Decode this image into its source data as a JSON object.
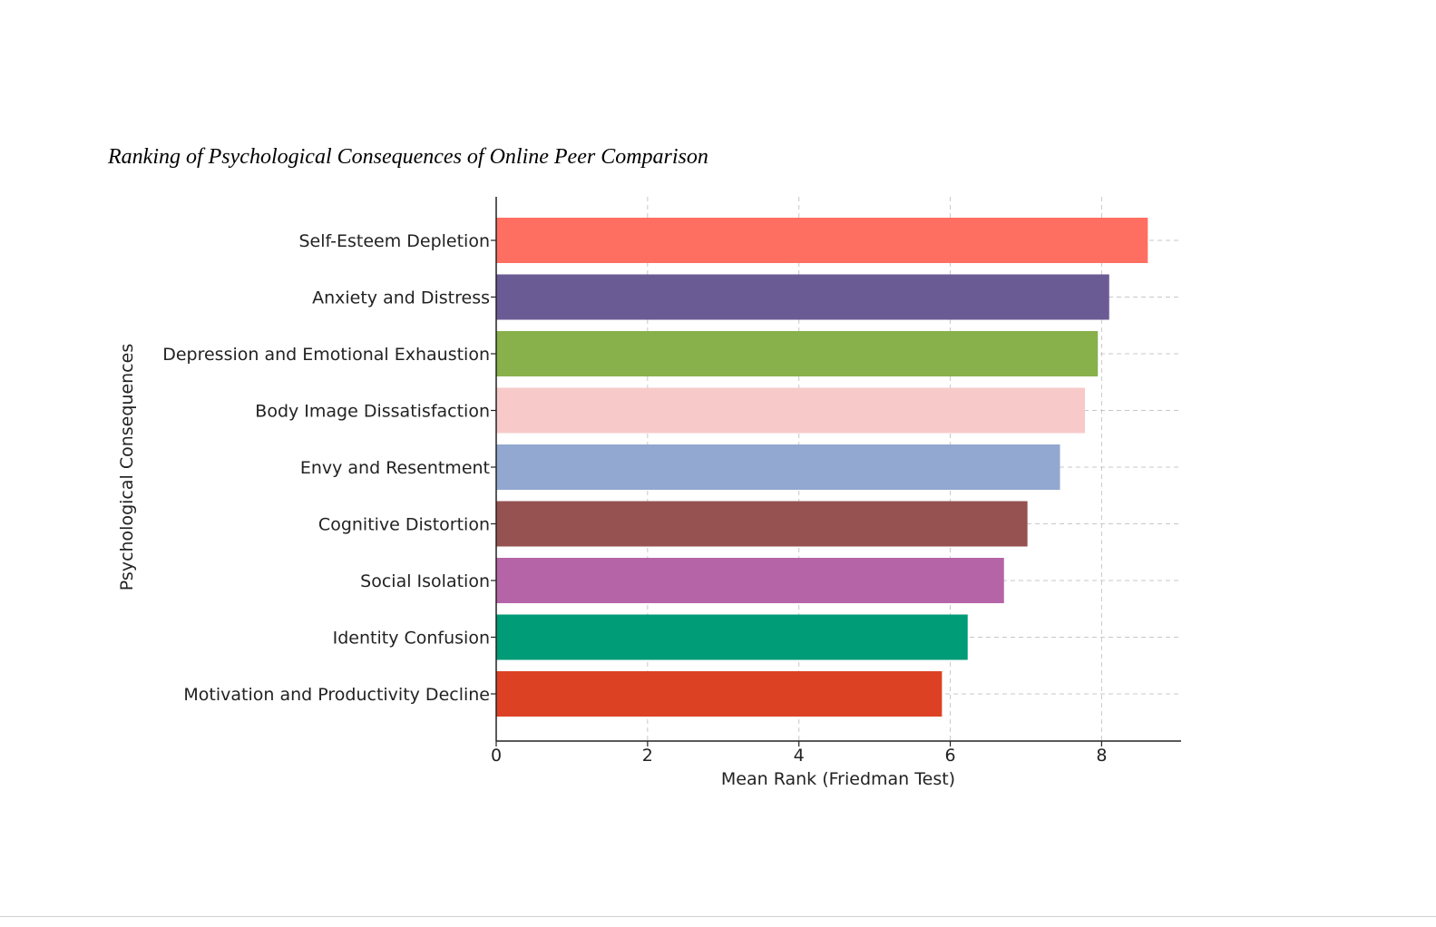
{
  "chart_data": {
    "type": "bar",
    "orientation": "horizontal",
    "title": "Ranking of Psychological Consequences of Online Peer Comparison",
    "xlabel": "Mean Rank (Friedman Test)",
    "ylabel": "Psychological Consequences",
    "xlim": [
      0,
      9.05
    ],
    "xticks": [
      0,
      2,
      4,
      6,
      8
    ],
    "grid": true,
    "categories": [
      "Self-Esteem Depletion",
      "Anxiety and Distress",
      "Depression and Emotional Exhaustion",
      "Body Image Dissatisfaction",
      "Envy and Resentment",
      "Cognitive Distortion",
      "Social Isolation",
      "Identity Confusion",
      "Motivation and Productivity Decline"
    ],
    "values": [
      8.61,
      8.1,
      7.95,
      7.78,
      7.45,
      7.02,
      6.71,
      6.23,
      5.89
    ],
    "colors": [
      "#ff6f61",
      "#6b5b95",
      "#88b04b",
      "#f7cac9",
      "#92a8d1",
      "#955251",
      "#b565a7",
      "#009b77",
      "#dd4124"
    ]
  }
}
